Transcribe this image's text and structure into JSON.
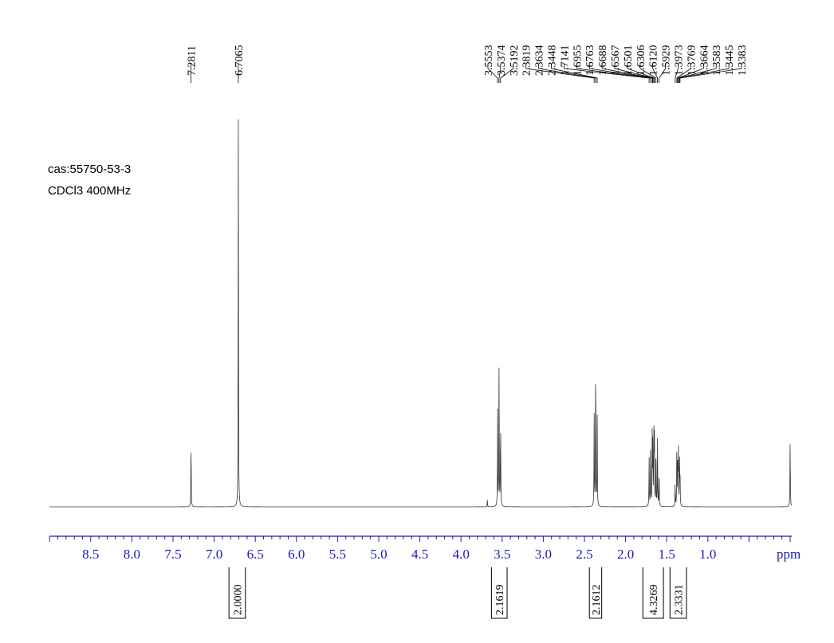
{
  "annotations": {
    "cas": "cas:55750-53-3",
    "solvent": "CDCl3 400MHz"
  },
  "chart_data": {
    "type": "line",
    "title": "",
    "xlabel": "ppm",
    "ylabel": "",
    "xlim": [
      9.0,
      0.0
    ],
    "x_reversed": true,
    "grid": false,
    "x_ticks": [
      8.5,
      8.0,
      7.5,
      7.0,
      6.5,
      6.0,
      5.5,
      5.0,
      4.5,
      4.0,
      3.5,
      3.0,
      2.5,
      2.0,
      1.5,
      1.0
    ],
    "x_tick_labels": [
      "8.5",
      "8.0",
      "7.5",
      "7.0",
      "6.5",
      "6.0",
      "5.5",
      "5.0",
      "4.5",
      "4.0",
      "3.5",
      "3.0",
      "2.5",
      "2.0",
      "1.5",
      "1.0"
    ],
    "peak_labels": [
      "7.2811",
      "6.7065",
      "3.5553",
      "3.5374",
      "3.5192",
      "2.3819",
      "2.3634",
      "2.3448",
      "1.7141",
      "1.6955",
      "1.6763",
      "1.6688",
      "1.6567",
      "1.6501",
      "1.6306",
      "1.6120",
      "1.5929",
      "1.3973",
      "1.3769",
      "1.3664",
      "1.3583",
      "1.3445",
      "1.3383"
    ],
    "peaks": [
      {
        "shift": 7.2811,
        "height": 0.18
      },
      {
        "shift": 6.7065,
        "height": 1.0
      },
      {
        "shift": 3.5553,
        "height": 0.23
      },
      {
        "shift": 3.5374,
        "height": 0.38
      },
      {
        "shift": 3.5192,
        "height": 0.23
      },
      {
        "shift": 2.3819,
        "height": 0.22
      },
      {
        "shift": 2.3634,
        "height": 0.41
      },
      {
        "shift": 2.3448,
        "height": 0.22
      },
      {
        "shift": 1.7141,
        "height": 0.12
      },
      {
        "shift": 1.6955,
        "height": 0.17
      },
      {
        "shift": 1.6763,
        "height": 0.17
      },
      {
        "shift": 1.6688,
        "height": 0.16
      },
      {
        "shift": 1.6567,
        "height": 0.18
      },
      {
        "shift": 1.6501,
        "height": 0.19
      },
      {
        "shift": 1.6306,
        "height": 0.17
      },
      {
        "shift": 1.612,
        "height": 0.16
      },
      {
        "shift": 1.5929,
        "height": 0.09
      },
      {
        "shift": 1.3973,
        "height": 0.06
      },
      {
        "shift": 1.3769,
        "height": 0.15
      },
      {
        "shift": 1.3664,
        "height": 0.13
      },
      {
        "shift": 1.3583,
        "height": 0.15
      },
      {
        "shift": 1.3445,
        "height": 0.11
      },
      {
        "shift": 1.3383,
        "height": 0.08
      },
      {
        "shift": 3.68,
        "height": 0.018
      },
      {
        "shift": 0.0,
        "height": 0.18
      }
    ],
    "integrations": [
      {
        "from": 6.82,
        "to": 6.62,
        "value": "2.0000"
      },
      {
        "from": 3.63,
        "to": 3.44,
        "value": "2.1619"
      },
      {
        "from": 2.44,
        "to": 2.29,
        "value": "2.1612"
      },
      {
        "from": 1.79,
        "to": 1.54,
        "value": "4.3269"
      },
      {
        "from": 1.46,
        "to": 1.26,
        "value": "2.3331"
      }
    ]
  }
}
